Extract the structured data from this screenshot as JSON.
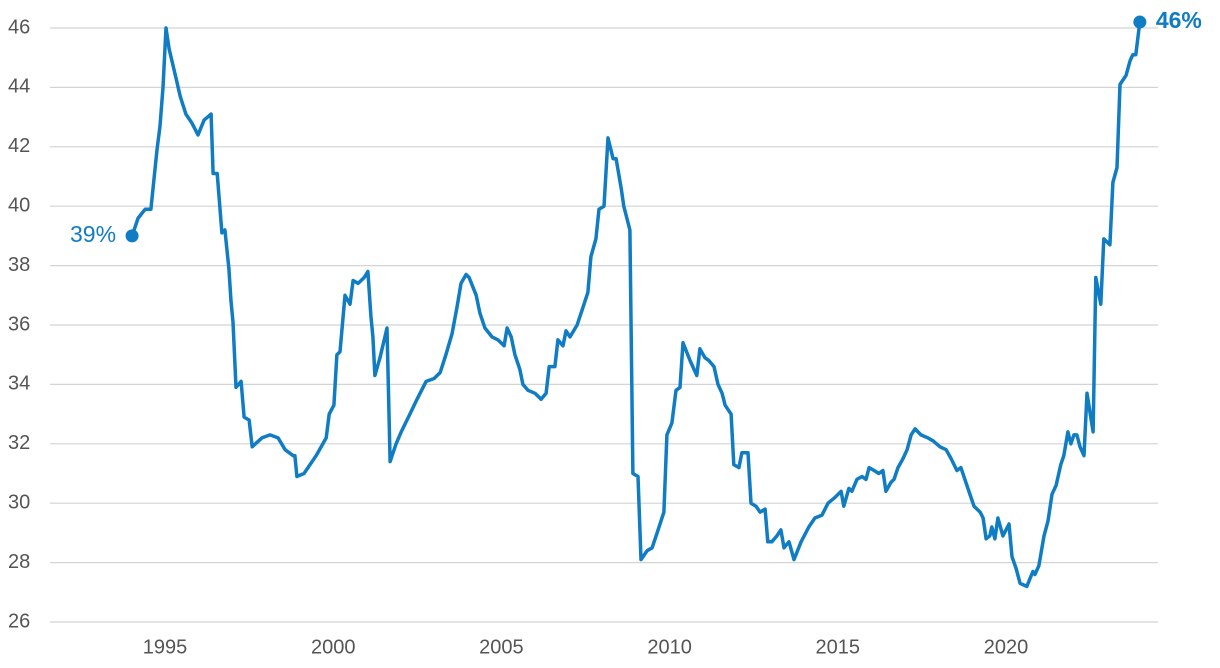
{
  "chart_data": {
    "type": "line",
    "color": "#0f7cc4",
    "grid": true,
    "xlim": [
      1991.58,
      2024.52
    ],
    "ylim": [
      26,
      46
    ],
    "xticks": [
      1995,
      2000,
      2005,
      2010,
      2015,
      2020
    ],
    "yticks": [
      26,
      28,
      30,
      32,
      34,
      36,
      38,
      40,
      42,
      44,
      46
    ],
    "annotations": [
      "39%",
      "46%"
    ],
    "x": [
      1994.02,
      1994.2,
      1994.41,
      1994.58,
      1994.76,
      1994.85,
      1994.94,
      1995.03,
      1995.12,
      1995.33,
      1995.45,
      1995.62,
      1995.8,
      1995.98,
      1996.16,
      1996.37,
      1996.43,
      1996.55,
      1996.69,
      1996.78,
      1996.9,
      1996.96,
      1997.02,
      1997.11,
      1997.26,
      1997.35,
      1997.5,
      1997.59,
      1997.88,
      1998.12,
      1998.36,
      1998.57,
      1998.81,
      1998.86,
      1998.92,
      1999.13,
      1999.49,
      1999.79,
      1999.88,
      2000.02,
      2000.11,
      2000.2,
      2000.35,
      2000.5,
      2000.59,
      2000.74,
      2000.92,
      2001.03,
      2001.12,
      2001.18,
      2001.24,
      2001.39,
      2001.6,
      2001.69,
      2001.87,
      2002.02,
      2002.28,
      2002.49,
      2002.76,
      2003.0,
      2003.18,
      2003.35,
      2003.53,
      2003.68,
      2003.8,
      2003.95,
      2004.04,
      2004.25,
      2004.36,
      2004.51,
      2004.72,
      2004.9,
      2005.08,
      2005.17,
      2005.29,
      2005.4,
      2005.55,
      2005.64,
      2005.79,
      2006.0,
      2006.18,
      2006.33,
      2006.42,
      2006.59,
      2006.68,
      2006.83,
      2006.92,
      2007.04,
      2007.25,
      2007.4,
      2007.57,
      2007.66,
      2007.81,
      2007.9,
      2008.05,
      2008.17,
      2008.32,
      2008.41,
      2008.56,
      2008.64,
      2008.82,
      2008.91,
      2009.06,
      2009.15,
      2009.33,
      2009.48,
      2009.63,
      2009.83,
      2009.92,
      2010.07,
      2010.19,
      2010.31,
      2010.4,
      2010.61,
      2010.81,
      2010.9,
      2011.05,
      2011.17,
      2011.32,
      2011.44,
      2011.56,
      2011.65,
      2011.83,
      2011.91,
      2012.06,
      2012.15,
      2012.33,
      2012.42,
      2012.57,
      2012.69,
      2012.84,
      2012.92,
      2013.04,
      2013.19,
      2013.31,
      2013.4,
      2013.55,
      2013.7,
      2013.91,
      2014.14,
      2014.32,
      2014.53,
      2014.71,
      2014.92,
      2015.1,
      2015.18,
      2015.33,
      2015.42,
      2015.57,
      2015.72,
      2015.84,
      2015.93,
      2016.08,
      2016.22,
      2016.34,
      2016.43,
      2016.58,
      2016.67,
      2016.79,
      2016.94,
      2017.06,
      2017.18,
      2017.3,
      2017.47,
      2017.68,
      2017.83,
      2018.04,
      2018.22,
      2018.37,
      2018.54,
      2018.66,
      2018.84,
      2019.05,
      2019.23,
      2019.32,
      2019.41,
      2019.52,
      2019.58,
      2019.67,
      2019.76,
      2019.91,
      2020.09,
      2020.18,
      2020.3,
      2020.42,
      2020.62,
      2020.8,
      2020.86,
      2020.98,
      2021.13,
      2021.25,
      2021.37,
      2021.49,
      2021.63,
      2021.72,
      2021.84,
      2021.93,
      2022.02,
      2022.11,
      2022.2,
      2022.32,
      2022.41,
      2022.59,
      2022.67,
      2022.82,
      2022.91,
      2023.09,
      2023.18,
      2023.3,
      2023.39,
      2023.57,
      2023.69,
      2023.77,
      2023.86,
      2023.98
    ],
    "values": [
      39.0,
      39.6,
      39.9,
      39.9,
      41.9,
      42.7,
      44.0,
      46.0,
      45.3,
      44.3,
      43.7,
      43.1,
      42.8,
      42.4,
      42.9,
      43.1,
      41.1,
      41.1,
      39.1,
      39.2,
      37.9,
      36.8,
      36.1,
      33.9,
      34.1,
      32.9,
      32.8,
      31.9,
      32.2,
      32.3,
      32.2,
      31.8,
      31.6,
      31.6,
      30.9,
      31.0,
      31.6,
      32.2,
      33.0,
      33.3,
      35.0,
      35.1,
      37.0,
      36.7,
      37.5,
      37.4,
      37.6,
      37.8,
      36.3,
      35.6,
      34.3,
      34.9,
      35.9,
      31.4,
      32.0,
      32.4,
      33.0,
      33.5,
      34.1,
      34.2,
      34.4,
      35.0,
      35.7,
      36.6,
      37.4,
      37.7,
      37.6,
      37.0,
      36.4,
      35.9,
      35.6,
      35.5,
      35.3,
      35.9,
      35.6,
      35.0,
      34.5,
      34.0,
      33.8,
      33.7,
      33.5,
      33.7,
      34.6,
      34.6,
      35.5,
      35.3,
      35.8,
      35.6,
      36.0,
      36.5,
      37.1,
      38.3,
      38.9,
      39.9,
      40.0,
      42.3,
      41.6,
      41.6,
      40.6,
      40.0,
      39.2,
      31.0,
      30.9,
      28.1,
      28.4,
      28.5,
      29.0,
      29.7,
      32.3,
      32.7,
      33.8,
      33.9,
      35.4,
      34.8,
      34.3,
      35.2,
      34.9,
      34.8,
      34.6,
      34.0,
      33.7,
      33.3,
      33.0,
      31.3,
      31.2,
      31.7,
      31.7,
      30.0,
      29.9,
      29.7,
      29.8,
      28.7,
      28.7,
      28.9,
      29.1,
      28.5,
      28.7,
      28.1,
      28.7,
      29.2,
      29.5,
      29.6,
      30.0,
      30.2,
      30.4,
      29.9,
      30.5,
      30.4,
      30.8,
      30.9,
      30.8,
      31.2,
      31.1,
      31.0,
      31.1,
      30.4,
      30.7,
      30.8,
      31.2,
      31.5,
      31.8,
      32.3,
      32.5,
      32.3,
      32.2,
      32.1,
      31.9,
      31.8,
      31.5,
      31.1,
      31.2,
      30.6,
      29.9,
      29.7,
      29.5,
      28.8,
      28.9,
      29.2,
      28.8,
      29.5,
      28.9,
      29.3,
      28.2,
      27.8,
      27.3,
      27.2,
      27.7,
      27.6,
      27.9,
      28.9,
      29.4,
      30.3,
      30.6,
      31.3,
      31.6,
      32.4,
      32.0,
      32.3,
      32.3,
      31.9,
      31.6,
      33.7,
      32.4,
      37.6,
      36.7,
      38.9,
      38.7,
      40.8,
      41.3,
      44.1,
      44.4,
      44.9,
      45.1,
      45.1,
      46.2
    ]
  }
}
